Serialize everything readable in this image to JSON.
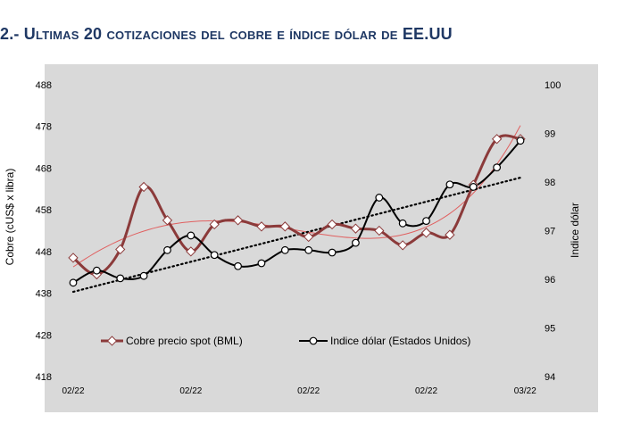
{
  "title": {
    "prefix": "2.- U",
    "rest": "ltimas 20 cotizaciones del cobre e índice dólar de EE.UU"
  },
  "chart_data": {
    "type": "line",
    "title": "2.- Ultimas 20 cotizaciones del cobre e índice dólar de EE.UU",
    "ylabel": "Cobre (cUS$ x libra)",
    "y2label": "Indice dólar",
    "ylim": [
      418,
      488
    ],
    "y_ticks": [
      488,
      478,
      468,
      458,
      448,
      438,
      428,
      418
    ],
    "y2lim": [
      94,
      100
    ],
    "y2_ticks": [
      100,
      99,
      98,
      97,
      96,
      95,
      94
    ],
    "x": [
      1,
      2,
      3,
      4,
      5,
      6,
      7,
      8,
      9,
      10,
      11,
      12,
      13,
      14,
      15,
      16,
      17,
      18,
      19,
      20
    ],
    "x_tick_labels": [
      {
        "x": 1,
        "label": "02/22"
      },
      {
        "x": 6,
        "label": "02/22"
      },
      {
        "x": 11,
        "label": "02/22"
      },
      {
        "x": 16,
        "label": "02/22"
      },
      {
        "x": 20.2,
        "label": "03/22"
      }
    ],
    "grid": false,
    "legend_position": "bottom",
    "series": [
      {
        "name": "Cobre precio spot (BML)",
        "axis": "left",
        "color": "#8b3a3a",
        "values": [
          446.5,
          442.5,
          448.5,
          463.5,
          455.5,
          448.0,
          454.5,
          455.5,
          454.0,
          454.0,
          451.5,
          454.5,
          453.5,
          453.0,
          449.5,
          452.5,
          452.0,
          464.0,
          475.0,
          475.0
        ],
        "trendline": {
          "type": "polynomial",
          "color": "#e06060"
        }
      },
      {
        "name": "Indice dólar (Estados Unidos)",
        "axis": "right",
        "color": "#000000",
        "values": [
          95.93,
          96.18,
          96.02,
          96.07,
          96.6,
          96.9,
          96.5,
          96.27,
          96.33,
          96.6,
          96.6,
          96.55,
          96.75,
          97.68,
          97.15,
          97.2,
          97.95,
          97.9,
          98.3,
          98.85
        ],
        "trendline": {
          "type": "linear",
          "color": "#000000",
          "style": "dotted"
        }
      }
    ]
  }
}
